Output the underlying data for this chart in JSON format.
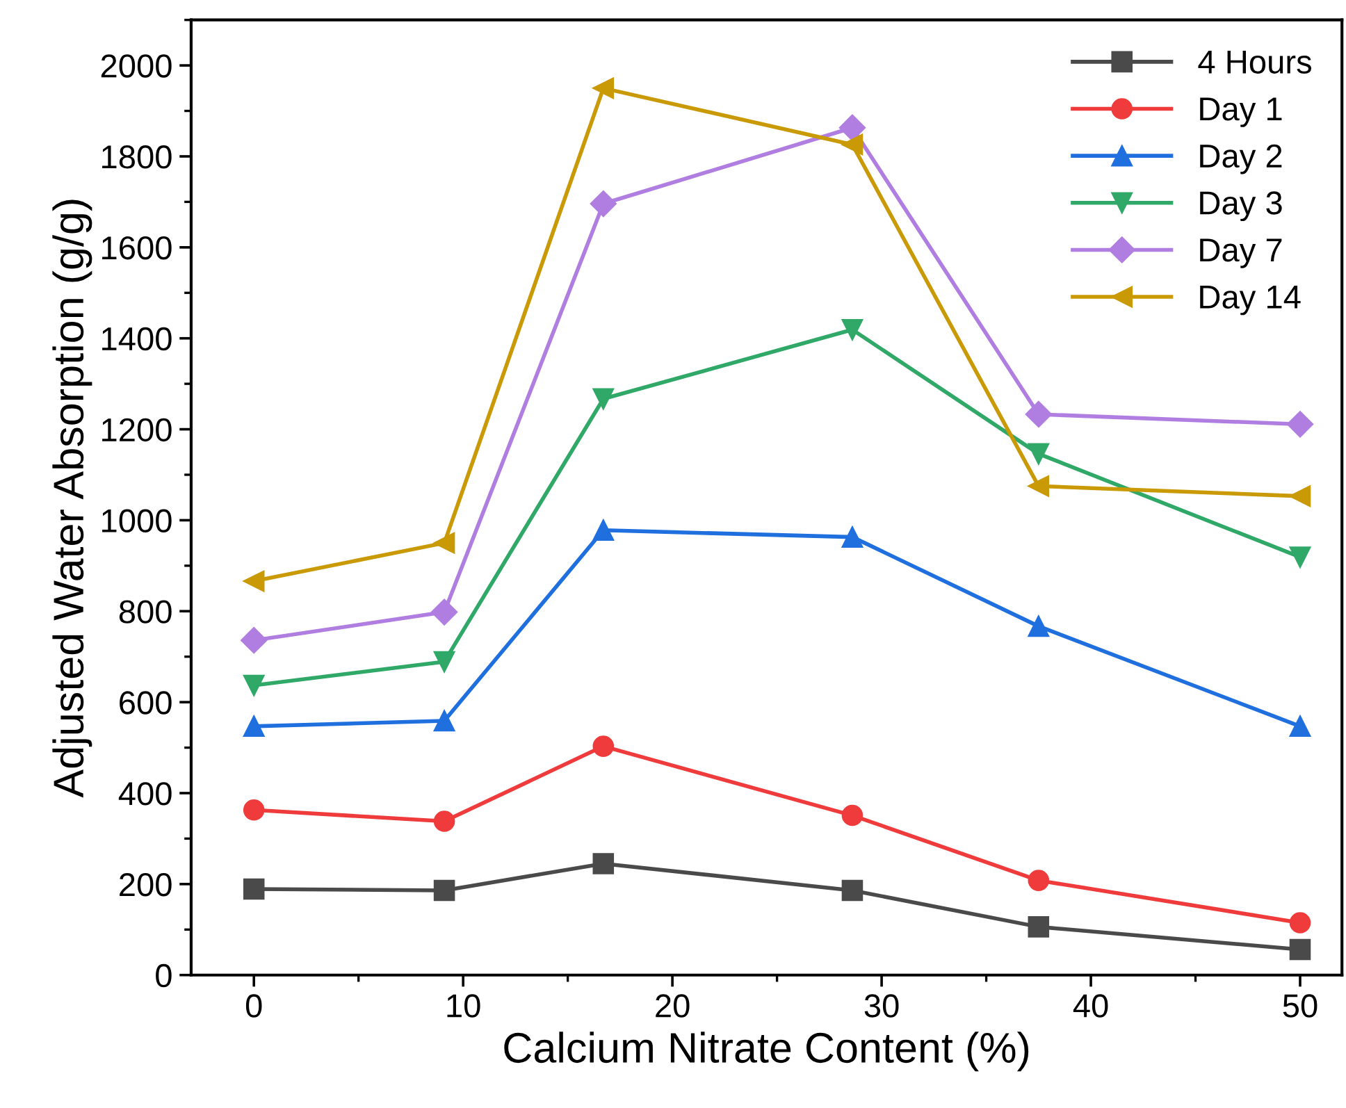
{
  "chart_data": {
    "type": "line",
    "xlabel": "Calcium Nitrate Content (%)",
    "ylabel": "Adjusted Water Absorption (g/g)",
    "x": [
      0,
      9.1,
      16.7,
      28.6,
      37.5,
      50
    ],
    "xlim": [
      -3,
      52
    ],
    "xticks": [
      0,
      10,
      20,
      30,
      40,
      50
    ],
    "ylim": [
      0,
      2100
    ],
    "yticks": [
      0,
      200,
      400,
      600,
      800,
      1000,
      1200,
      1400,
      1600,
      1800,
      2000
    ],
    "grid": false,
    "legend": "top right",
    "line_style": "solid",
    "series": [
      {
        "name": "4 Hours",
        "color": "#4a4a4a",
        "marker": "square",
        "values": [
          189,
          186,
          245,
          186,
          106,
          56
        ]
      },
      {
        "name": "Day 1",
        "color": "#ef3b3b",
        "marker": "circle",
        "values": [
          363,
          338,
          503,
          351,
          208,
          115
        ]
      },
      {
        "name": "Day 2",
        "color": "#1f6fdf",
        "marker": "triangle",
        "values": [
          547,
          559,
          978,
          963,
          767,
          547
        ]
      },
      {
        "name": "Day 3",
        "color": "#2fa868",
        "marker": "triangle_down",
        "values": [
          637,
          689,
          1267,
          1419,
          1146,
          919
        ]
      },
      {
        "name": "Day 7",
        "color": "#b07de0",
        "marker": "diamond",
        "values": [
          736,
          798,
          1696,
          1863,
          1233,
          1211
        ]
      },
      {
        "name": "Day 14",
        "color": "#c99a06",
        "marker": "triangle_left",
        "values": [
          866,
          950,
          1950,
          1826,
          1075,
          1053
        ]
      }
    ]
  }
}
